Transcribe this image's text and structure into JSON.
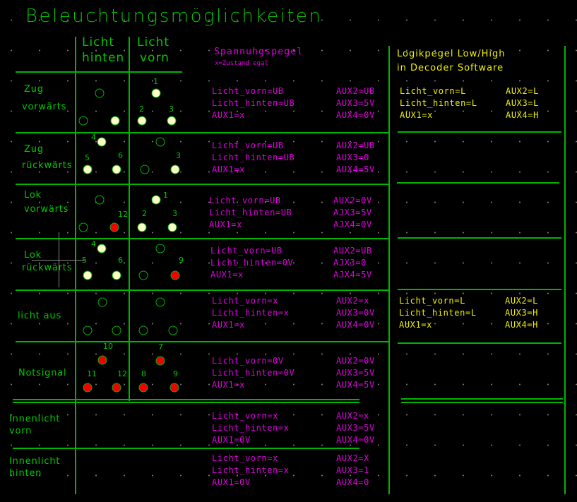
{
  "title": "Beleuchtungsmöglichkeiten",
  "columns": {
    "hinten": [
      "Licht",
      "hinten"
    ],
    "vorn": [
      "Licht",
      "vorn"
    ]
  },
  "voltage_header": {
    "title": "Spannuhgspegel",
    "note": "x=Zustand egal"
  },
  "logic_header": [
    "Logikpegel Low/High",
    "in Decoder Software"
  ],
  "colors": {
    "grid_line": "#00b400",
    "voltage_text": "#e000e0",
    "logic_text": "#f0f000",
    "led_on": "#ffffc8",
    "led_red": "#f00000"
  },
  "rows": [
    {
      "label": [
        "Zug",
        "vorwärts"
      ],
      "left": [
        "Licht_vorn=UB",
        "Licht_hinten=UB",
        "AUX1=x"
      ],
      "right": [
        "AUX2=UB",
        "AUX3=5V",
        "AUX4=0V"
      ],
      "leds": [
        {
          "state": "off",
          "num": ""
        },
        {
          "state": "off",
          "num": ""
        },
        {
          "state": "on",
          "num": ""
        },
        {
          "state": "on",
          "num": "1"
        },
        {
          "state": "on",
          "num": "2"
        },
        {
          "state": "on",
          "num": "3"
        }
      ]
    },
    {
      "label": [
        "Zug",
        "rückwärts"
      ],
      "left": [
        "Licht_vorn=UB",
        "Licht_hinten=UB",
        "AUX1=x"
      ],
      "right": [
        "AUX2=UB",
        "AUX3=0",
        "AUX4=5V"
      ],
      "leds": [
        {
          "state": "on",
          "num": "4"
        },
        {
          "state": "on",
          "num": "5"
        },
        {
          "state": "on",
          "num": "6"
        },
        {
          "state": "off",
          "num": ""
        },
        {
          "state": "off",
          "num": ""
        },
        {
          "state": "on",
          "num": "3"
        }
      ]
    },
    {
      "label": [
        "Lok",
        "vorwärts"
      ],
      "left": [
        "Licht_vorn=UB",
        "Licht_hinten=UB",
        "AUX1=x"
      ],
      "right": [
        "AUX2=0V",
        "AJX3=5V",
        "AJX4=0V"
      ],
      "leds": [
        {
          "state": "off",
          "num": ""
        },
        {
          "state": "off",
          "num": ""
        },
        {
          "state": "red",
          "num": "12"
        },
        {
          "state": "on",
          "num": "1"
        },
        {
          "state": "on",
          "num": "2"
        },
        {
          "state": "on",
          "num": "3"
        }
      ]
    },
    {
      "label": [
        "Lok",
        "rückwärts"
      ],
      "left": [
        "Licht_vorn=UB",
        "Licht_hinten=0V",
        "AUX1=x"
      ],
      "right": [
        "AUX2=UB",
        "AJX3=0",
        "AJX4=5V"
      ],
      "leds": [
        {
          "state": "on",
          "num": "4"
        },
        {
          "state": "on",
          "num": "5"
        },
        {
          "state": "on",
          "num": "6"
        },
        {
          "state": "off",
          "num": ""
        },
        {
          "state": "off",
          "num": ""
        },
        {
          "state": "red",
          "num": "9"
        }
      ]
    },
    {
      "label": [
        "licht aus"
      ],
      "left": [
        "Licht_vorn=x",
        "Licht_hinten=x",
        "AUX1=x"
      ],
      "right": [
        "AUX2=x",
        "AUX3=0V",
        "AUX4=0V"
      ],
      "leds": [
        {
          "state": "off",
          "num": ""
        },
        {
          "state": "off",
          "num": ""
        },
        {
          "state": "off",
          "num": ""
        },
        {
          "state": "off",
          "num": ""
        },
        {
          "state": "off",
          "num": ""
        },
        {
          "state": "off",
          "num": ""
        }
      ]
    },
    {
      "label": [
        "Notsignal"
      ],
      "left": [
        "Licht_vorn=0V",
        "Licht_hinten=0V",
        "AUX1=x"
      ],
      "right": [
        "AUX2=0V",
        "AUX3=5V",
        "AUX4=5V"
      ],
      "leds": [
        {
          "state": "red",
          "num": "10"
        },
        {
          "state": "red",
          "num": "11"
        },
        {
          "state": "red",
          "num": "12"
        },
        {
          "state": "red",
          "num": "7"
        },
        {
          "state": "red",
          "num": "8"
        },
        {
          "state": "red",
          "num": "9"
        }
      ]
    },
    {
      "label": [
        "Innenlicht",
        "vorn"
      ],
      "left": [
        "Licht_vorn=x",
        "Licht_hinten=x",
        "AUX1=0V"
      ],
      "right": [
        "AUX2=x",
        "AUX3=5V",
        "AUX4=0V"
      ],
      "leds": []
    },
    {
      "label": [
        "Innenlicht",
        "hinten"
      ],
      "left": [
        "Licht_vorn=x",
        "Licht_hinten=x",
        "AUX1=0V"
      ],
      "right": [
        "AUX2=X",
        "AUX3=1",
        "AUX4=0"
      ],
      "leds": []
    }
  ],
  "logic": [
    {
      "left": [
        "Licht_vorn=L",
        "Licht_hinten=L",
        "AUX1=x"
      ],
      "right": [
        "AUX2=L",
        "AUX3=L",
        "AUX4=H"
      ]
    },
    {
      "left": [
        "Licht_vorn=L",
        "Licht_hinten=L",
        "AUX1=x"
      ],
      "right": [
        "AUX2=L",
        "AUX3=H",
        "AUX4=H"
      ]
    }
  ]
}
